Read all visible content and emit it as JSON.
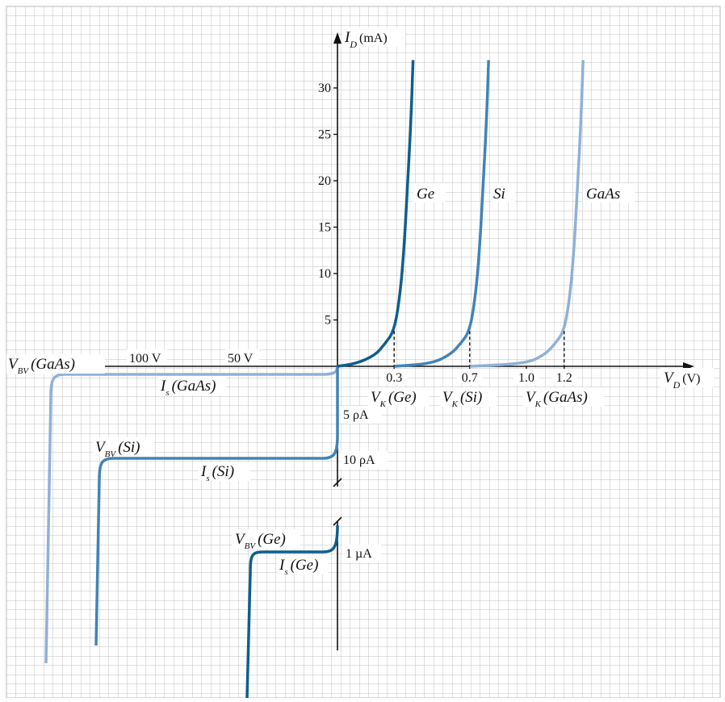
{
  "chart_data": {
    "type": "line",
    "xlabel": "V_D (V)",
    "ylabel": "I_D (mA)",
    "x_axis": {
      "symbol": "V",
      "subscript": "D",
      "unit": "(V)",
      "ticks": [
        "0.3",
        "0.7",
        "1.0",
        "1.2"
      ],
      "reverse_ticks": [
        "100 V",
        "50 V"
      ]
    },
    "y_axis": {
      "symbol": "I",
      "subscript": "D",
      "unit": "(mA)",
      "ticks": [
        "5",
        "10",
        "15",
        "20",
        "25",
        "30"
      ],
      "reverse_labels": [
        "5 ρA",
        "10 ρA",
        "1 µA"
      ]
    },
    "grid": true,
    "series": [
      {
        "name": "Ge",
        "color": "#0f5e8e",
        "knee_voltage": 0.3,
        "knee_label": [
          "V",
          "K",
          "(Ge)"
        ],
        "saturation_label": [
          "I",
          "s",
          "(Ge)"
        ],
        "breakdown_label": [
          "V",
          "BV",
          "(Ge)"
        ],
        "reverse_current": "1 µA"
      },
      {
        "name": "Si",
        "color": "#4283b6",
        "knee_voltage": 0.7,
        "knee_label": [
          "V",
          "K",
          "(Si)"
        ],
        "saturation_label": [
          "I",
          "s",
          "(Si)"
        ],
        "breakdown_label": [
          "V",
          "BV",
          "(Si)"
        ],
        "reverse_current": "10 ρA"
      },
      {
        "name": "GaAs",
        "color": "#8fb0d8",
        "knee_voltage": 1.2,
        "knee_label": [
          "V",
          "K",
          "(GaAs)"
        ],
        "saturation_label": [
          "I",
          "s",
          "(GaAs)"
        ],
        "breakdown_label": [
          "V",
          "BV",
          "(GaAs)"
        ],
        "reverse_current": "5 ρA"
      }
    ],
    "forward_curves": [
      {
        "name": "Ge",
        "points": [
          [
            0,
            0
          ],
          [
            0.1,
            0.3
          ],
          [
            0.2,
            1.2
          ],
          [
            0.25,
            2.4
          ],
          [
            0.3,
            3.8
          ],
          [
            0.33,
            7.5
          ],
          [
            0.35,
            12
          ],
          [
            0.37,
            19
          ],
          [
            0.39,
            27
          ],
          [
            0.4,
            33
          ]
        ]
      },
      {
        "name": "Si",
        "points": [
          [
            0.3,
            0
          ],
          [
            0.5,
            0.3
          ],
          [
            0.6,
            1.3
          ],
          [
            0.65,
            2.4
          ],
          [
            0.7,
            3.8
          ],
          [
            0.73,
            7.5
          ],
          [
            0.75,
            12
          ],
          [
            0.77,
            19
          ],
          [
            0.79,
            27
          ],
          [
            0.8,
            33
          ]
        ]
      },
      {
        "name": "GaAs",
        "points": [
          [
            0.7,
            0
          ],
          [
            1.0,
            0.3
          ],
          [
            1.1,
            1.3
          ],
          [
            1.15,
            2.4
          ],
          [
            1.2,
            3.8
          ],
          [
            1.23,
            7.5
          ],
          [
            1.25,
            12
          ],
          [
            1.27,
            19
          ],
          [
            1.29,
            27
          ],
          [
            1.3,
            33
          ]
        ]
      }
    ]
  }
}
